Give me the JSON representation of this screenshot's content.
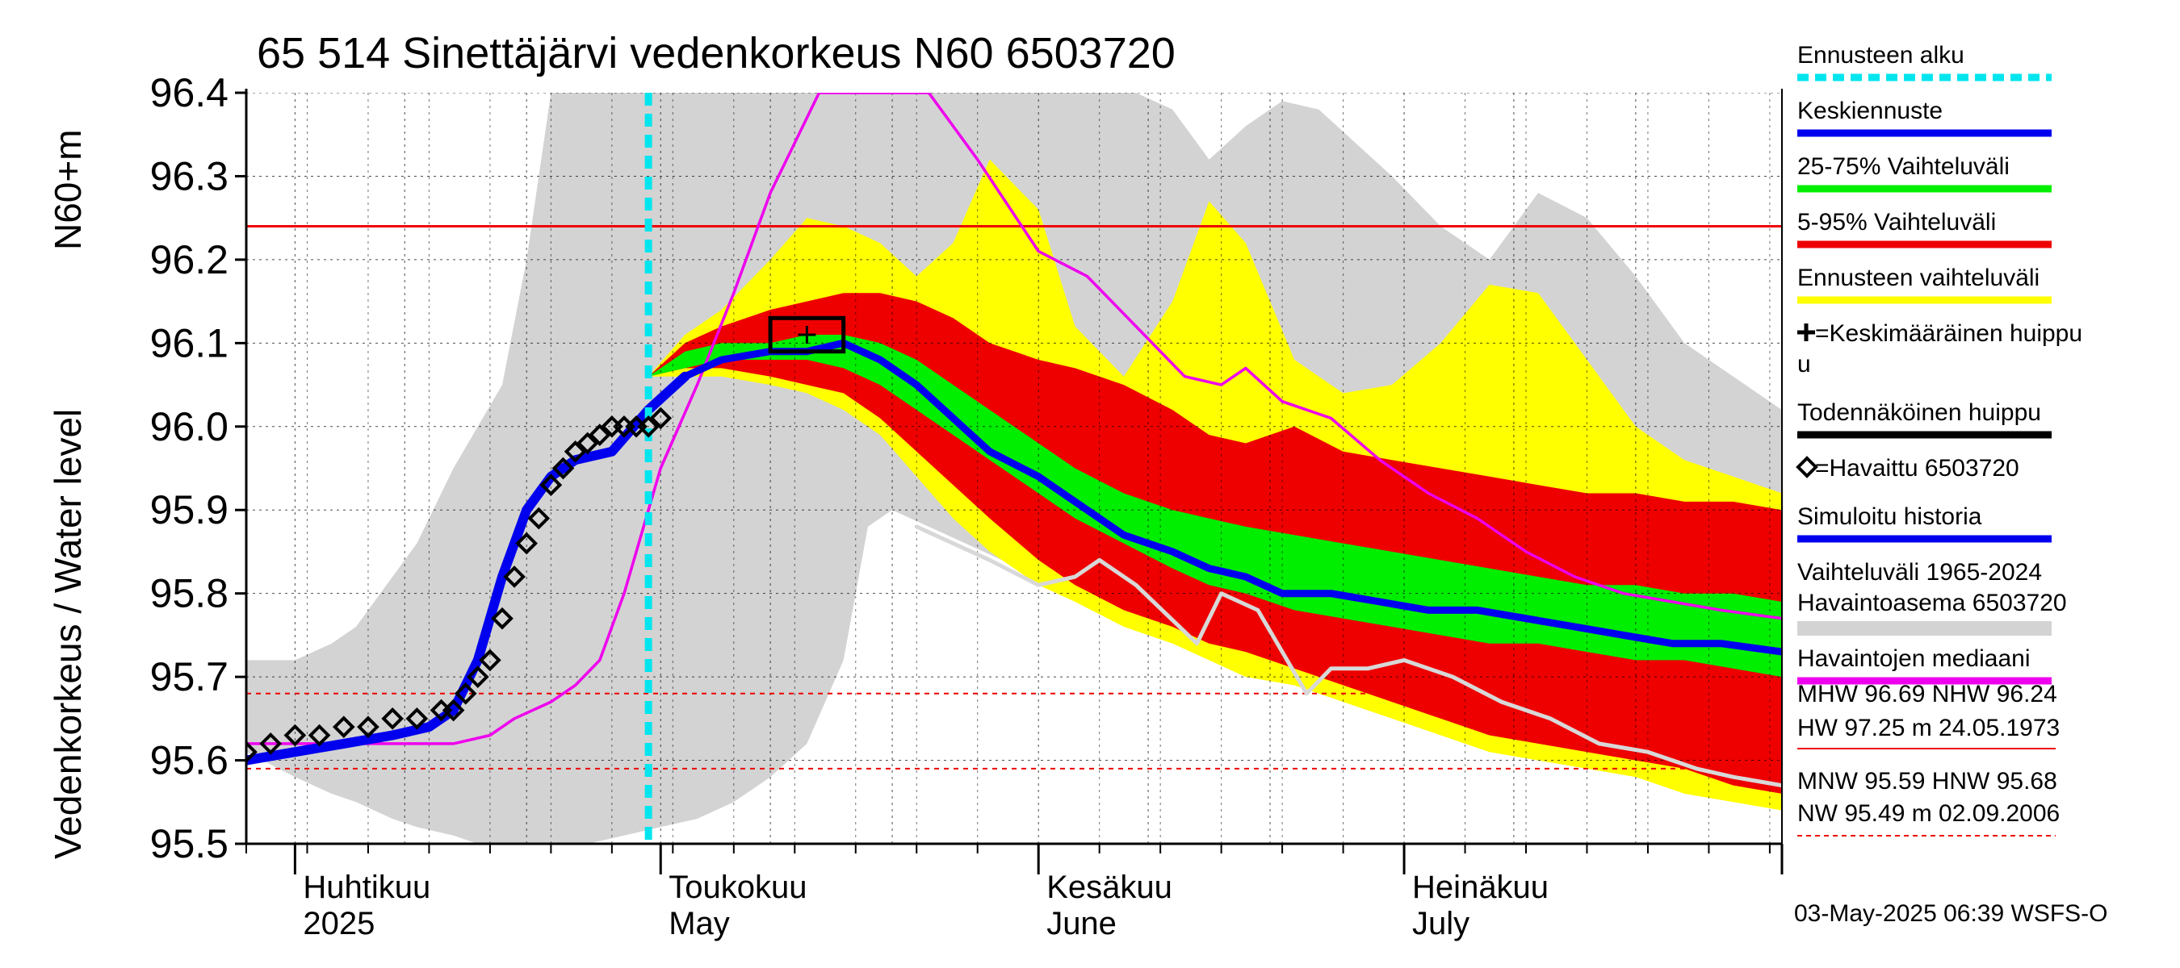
{
  "chart_data": {
    "type": "area",
    "title": "65 514 Sinettäjärvi vedenkorkeus N60 6503720",
    "ylabel": "Vedenkorkeus / Water level",
    "yunit": "N60+m",
    "ylim": [
      95.5,
      96.4
    ],
    "yticks": [
      "95.5",
      "95.6",
      "95.7",
      "95.8",
      "95.9",
      "96.0",
      "96.1",
      "96.2",
      "96.3",
      "96.4"
    ],
    "xlim": [
      "2025-03-28",
      "2025-08-01"
    ],
    "month_labels": [
      {
        "fi": "Huhtikuu",
        "en": "2025",
        "date": "2025-04-01"
      },
      {
        "fi": "Toukokuu",
        "en": "May",
        "date": "2025-05-01"
      },
      {
        "fi": "Kesäkuu",
        "en": "June",
        "date": "2025-06-01"
      },
      {
        "fi": "Heinäkuu",
        "en": "July",
        "date": "2025-07-01"
      }
    ],
    "forecast_start": "2025-04-30",
    "nhw_level": 96.24,
    "mhw_level": 95.68,
    "mnw_level": 95.59,
    "history_band": [
      {
        "date": "2025-03-28",
        "low": 95.61,
        "high": 95.72
      },
      {
        "date": "2025-04-01",
        "low": 95.58,
        "high": 95.72
      },
      {
        "date": "2025-04-04",
        "low": 95.56,
        "high": 95.74
      },
      {
        "date": "2025-04-06",
        "low": 95.55,
        "high": 95.76
      },
      {
        "date": "2025-04-09",
        "low": 95.53,
        "high": 95.82
      },
      {
        "date": "2025-04-11",
        "low": 95.52,
        "high": 95.86
      },
      {
        "date": "2025-04-14",
        "low": 95.51,
        "high": 95.95
      },
      {
        "date": "2025-04-16",
        "low": 95.5,
        "high": 96.0
      },
      {
        "date": "2025-04-18",
        "low": 95.5,
        "high": 96.05
      },
      {
        "date": "2025-04-20",
        "low": 95.5,
        "high": 96.2
      },
      {
        "date": "2025-04-22",
        "low": 95.5,
        "high": 96.4
      },
      {
        "date": "2025-04-25",
        "low": 95.5,
        "high": 96.4
      },
      {
        "date": "2025-04-28",
        "low": 95.51,
        "high": 96.4
      },
      {
        "date": "2025-05-01",
        "low": 95.52,
        "high": 96.4
      },
      {
        "date": "2025-05-04",
        "low": 95.53,
        "high": 96.4
      },
      {
        "date": "2025-05-07",
        "low": 95.55,
        "high": 96.4
      },
      {
        "date": "2025-05-10",
        "low": 95.58,
        "high": 96.4
      },
      {
        "date": "2025-05-13",
        "low": 95.62,
        "high": 96.4
      },
      {
        "date": "2025-05-16",
        "low": 95.72,
        "high": 96.4
      },
      {
        "date": "2025-05-18",
        "low": 95.88,
        "high": 96.4
      },
      {
        "date": "2025-05-20",
        "low": 95.9,
        "high": 96.4
      },
      {
        "date": "2025-05-23",
        "low": 95.88,
        "high": 96.4
      },
      {
        "date": "2025-05-26",
        "low": 95.86,
        "high": 96.4
      },
      {
        "date": "2025-05-29",
        "low": 95.84,
        "high": 96.4
      },
      {
        "date": "2025-06-01",
        "low": 95.82,
        "high": 96.4
      },
      {
        "date": "2025-06-05",
        "low": 95.8,
        "high": 96.4
      },
      {
        "date": "2025-06-09",
        "low": 95.78,
        "high": 96.4
      },
      {
        "date": "2025-06-12",
        "low": 95.77,
        "high": 96.38
      },
      {
        "date": "2025-06-15",
        "low": 95.75,
        "high": 96.32
      },
      {
        "date": "2025-06-18",
        "low": 95.74,
        "high": 96.36
      },
      {
        "date": "2025-06-21",
        "low": 95.72,
        "high": 96.39
      },
      {
        "date": "2025-06-24",
        "low": 95.71,
        "high": 96.38
      },
      {
        "date": "2025-06-27",
        "low": 95.7,
        "high": 96.34
      },
      {
        "date": "2025-06-30",
        "low": 95.68,
        "high": 96.3
      },
      {
        "date": "2025-07-04",
        "low": 95.66,
        "high": 96.24
      },
      {
        "date": "2025-07-08",
        "low": 95.64,
        "high": 96.2
      },
      {
        "date": "2025-07-12",
        "low": 95.62,
        "high": 96.28
      },
      {
        "date": "2025-07-16",
        "low": 95.6,
        "high": 96.25
      },
      {
        "date": "2025-07-20",
        "low": 95.58,
        "high": 96.18
      },
      {
        "date": "2025-07-24",
        "low": 95.57,
        "high": 96.1
      },
      {
        "date": "2025-07-28",
        "low": 95.56,
        "high": 96.06
      },
      {
        "date": "2025-08-01",
        "low": 95.55,
        "high": 96.02
      }
    ],
    "forecast_bands": [
      {
        "date": "2025-04-30",
        "y_low": 96.06,
        "r_low": 96.06,
        "g_low": 96.06,
        "g_high": 96.06,
        "r_high": 96.06,
        "y_high": 96.06
      },
      {
        "date": "2025-05-03",
        "y_low": 96.06,
        "r_low": 96.07,
        "g_low": 96.07,
        "g_high": 96.09,
        "r_high": 96.1,
        "y_high": 96.11
      },
      {
        "date": "2025-05-06",
        "y_low": 96.06,
        "r_low": 96.07,
        "g_low": 96.08,
        "g_high": 96.1,
        "r_high": 96.12,
        "y_high": 96.14
      },
      {
        "date": "2025-05-10",
        "y_low": 96.05,
        "r_low": 96.06,
        "g_low": 96.08,
        "g_high": 96.1,
        "r_high": 96.14,
        "y_high": 96.2
      },
      {
        "date": "2025-05-13",
        "y_low": 96.04,
        "r_low": 96.05,
        "g_low": 96.08,
        "g_high": 96.11,
        "r_high": 96.15,
        "y_high": 96.25
      },
      {
        "date": "2025-05-16",
        "y_low": 96.02,
        "r_low": 96.04,
        "g_low": 96.07,
        "g_high": 96.11,
        "r_high": 96.16,
        "y_high": 96.24
      },
      {
        "date": "2025-05-19",
        "y_low": 95.99,
        "r_low": 96.01,
        "g_low": 96.05,
        "g_high": 96.1,
        "r_high": 96.16,
        "y_high": 96.22
      },
      {
        "date": "2025-05-22",
        "y_low": 95.94,
        "r_low": 95.97,
        "g_low": 96.02,
        "g_high": 96.08,
        "r_high": 96.15,
        "y_high": 96.18
      },
      {
        "date": "2025-05-25",
        "y_low": 95.89,
        "r_low": 95.93,
        "g_low": 95.99,
        "g_high": 96.05,
        "r_high": 96.13,
        "y_high": 96.22
      },
      {
        "date": "2025-05-28",
        "y_low": 95.85,
        "r_low": 95.89,
        "g_low": 95.96,
        "g_high": 96.02,
        "r_high": 96.1,
        "y_high": 96.32
      },
      {
        "date": "2025-06-01",
        "y_low": 95.81,
        "r_low": 95.84,
        "g_low": 95.92,
        "g_high": 95.98,
        "r_high": 96.08,
        "y_high": 96.26
      },
      {
        "date": "2025-06-04",
        "y_low": 95.79,
        "r_low": 95.81,
        "g_low": 95.89,
        "g_high": 95.95,
        "r_high": 96.07,
        "y_high": 96.12
      },
      {
        "date": "2025-06-08",
        "y_low": 95.76,
        "r_low": 95.78,
        "g_low": 95.86,
        "g_high": 95.92,
        "r_high": 96.05,
        "y_high": 96.06
      },
      {
        "date": "2025-06-12",
        "y_low": 95.74,
        "r_low": 95.76,
        "g_low": 95.83,
        "g_high": 95.9,
        "r_high": 96.02,
        "y_high": 96.15
      },
      {
        "date": "2025-06-15",
        "y_low": 95.72,
        "r_low": 95.74,
        "g_low": 95.81,
        "g_high": 95.89,
        "r_high": 95.99,
        "y_high": 96.27
      },
      {
        "date": "2025-06-18",
        "y_low": 95.7,
        "r_low": 95.73,
        "g_low": 95.8,
        "g_high": 95.88,
        "r_high": 95.98,
        "y_high": 96.22
      },
      {
        "date": "2025-06-22",
        "y_low": 95.69,
        "r_low": 95.71,
        "g_low": 95.78,
        "g_high": 95.87,
        "r_high": 96.0,
        "y_high": 96.08
      },
      {
        "date": "2025-06-26",
        "y_low": 95.67,
        "r_low": 95.69,
        "g_low": 95.77,
        "g_high": 95.86,
        "r_high": 95.97,
        "y_high": 96.04
      },
      {
        "date": "2025-06-30",
        "y_low": 95.65,
        "r_low": 95.67,
        "g_low": 95.76,
        "g_high": 95.85,
        "r_high": 95.96,
        "y_high": 96.05
      },
      {
        "date": "2025-07-04",
        "y_low": 95.63,
        "r_low": 95.65,
        "g_low": 95.75,
        "g_high": 95.84,
        "r_high": 95.95,
        "y_high": 96.1
      },
      {
        "date": "2025-07-08",
        "y_low": 95.61,
        "r_low": 95.63,
        "g_low": 95.74,
        "g_high": 95.83,
        "r_high": 95.94,
        "y_high": 96.17
      },
      {
        "date": "2025-07-12",
        "y_low": 95.6,
        "r_low": 95.62,
        "g_low": 95.74,
        "g_high": 95.82,
        "r_high": 95.93,
        "y_high": 96.16
      },
      {
        "date": "2025-07-16",
        "y_low": 95.59,
        "r_low": 95.61,
        "g_low": 95.73,
        "g_high": 95.81,
        "r_high": 95.92,
        "y_high": 96.08
      },
      {
        "date": "2025-07-20",
        "y_low": 95.58,
        "r_low": 95.6,
        "g_low": 95.72,
        "g_high": 95.81,
        "r_high": 95.92,
        "y_high": 96.0
      },
      {
        "date": "2025-07-24",
        "y_low": 95.56,
        "r_low": 95.59,
        "g_low": 95.72,
        "g_high": 95.8,
        "r_high": 95.91,
        "y_high": 95.96
      },
      {
        "date": "2025-07-28",
        "y_low": 95.55,
        "r_low": 95.57,
        "g_low": 95.71,
        "g_high": 95.8,
        "r_high": 95.91,
        "y_high": 95.94
      },
      {
        "date": "2025-08-01",
        "y_low": 95.54,
        "r_low": 95.56,
        "g_low": 95.7,
        "g_high": 95.79,
        "r_high": 95.9,
        "y_high": 95.92
      }
    ],
    "median": [
      {
        "date": "2025-03-28",
        "y": 95.62
      },
      {
        "date": "2025-04-10",
        "y": 95.62
      },
      {
        "date": "2025-04-14",
        "y": 95.62
      },
      {
        "date": "2025-04-17",
        "y": 95.63
      },
      {
        "date": "2025-04-19",
        "y": 95.65
      },
      {
        "date": "2025-04-22",
        "y": 95.67
      },
      {
        "date": "2025-04-24",
        "y": 95.69
      },
      {
        "date": "2025-04-26",
        "y": 95.72
      },
      {
        "date": "2025-04-28",
        "y": 95.8
      },
      {
        "date": "2025-05-01",
        "y": 95.95
      },
      {
        "date": "2025-05-04",
        "y": 96.05
      },
      {
        "date": "2025-05-07",
        "y": 96.16
      },
      {
        "date": "2025-05-10",
        "y": 96.28
      },
      {
        "date": "2025-05-12",
        "y": 96.34
      },
      {
        "date": "2025-05-14",
        "y": 96.4
      },
      {
        "date": "2025-05-23",
        "y": 96.4
      },
      {
        "date": "2025-05-27",
        "y": 96.32
      },
      {
        "date": "2025-06-01",
        "y": 96.21
      },
      {
        "date": "2025-06-05",
        "y": 96.18
      },
      {
        "date": "2025-06-09",
        "y": 96.12
      },
      {
        "date": "2025-06-13",
        "y": 96.06
      },
      {
        "date": "2025-06-16",
        "y": 96.05
      },
      {
        "date": "2025-06-18",
        "y": 96.07
      },
      {
        "date": "2025-06-21",
        "y": 96.03
      },
      {
        "date": "2025-06-25",
        "y": 96.01
      },
      {
        "date": "2025-06-29",
        "y": 95.96
      },
      {
        "date": "2025-07-03",
        "y": 95.92
      },
      {
        "date": "2025-07-07",
        "y": 95.89
      },
      {
        "date": "2025-07-11",
        "y": 95.85
      },
      {
        "date": "2025-07-15",
        "y": 95.82
      },
      {
        "date": "2025-07-19",
        "y": 95.8
      },
      {
        "date": "2025-07-23",
        "y": 95.79
      },
      {
        "date": "2025-07-27",
        "y": 95.78
      },
      {
        "date": "2025-08-01",
        "y": 95.77
      }
    ],
    "median_history": [
      {
        "date": "2025-05-22",
        "y": 95.88
      },
      {
        "date": "2025-05-28",
        "y": 95.84
      },
      {
        "date": "2025-06-01",
        "y": 95.81
      },
      {
        "date": "2025-06-04",
        "y": 95.82
      },
      {
        "date": "2025-06-06",
        "y": 95.84
      },
      {
        "date": "2025-06-09",
        "y": 95.81
      },
      {
        "date": "2025-06-14",
        "y": 95.74
      },
      {
        "date": "2025-06-16",
        "y": 95.8
      },
      {
        "date": "2025-06-19",
        "y": 95.78
      },
      {
        "date": "2025-06-23",
        "y": 95.68
      },
      {
        "date": "2025-06-25",
        "y": 95.71
      },
      {
        "date": "2025-06-28",
        "y": 95.71
      },
      {
        "date": "2025-07-01",
        "y": 95.72
      },
      {
        "date": "2025-07-05",
        "y": 95.7
      },
      {
        "date": "2025-07-09",
        "y": 95.67
      },
      {
        "date": "2025-07-13",
        "y": 95.65
      },
      {
        "date": "2025-07-17",
        "y": 95.62
      },
      {
        "date": "2025-07-21",
        "y": 95.61
      },
      {
        "date": "2025-07-25",
        "y": 95.59
      },
      {
        "date": "2025-07-28",
        "y": 95.58
      },
      {
        "date": "2025-08-01",
        "y": 95.57
      }
    ],
    "simulated": [
      {
        "date": "2025-03-28",
        "y": 95.6
      },
      {
        "date": "2025-04-01",
        "y": 95.61
      },
      {
        "date": "2025-04-05",
        "y": 95.62
      },
      {
        "date": "2025-04-09",
        "y": 95.63
      },
      {
        "date": "2025-04-12",
        "y": 95.64
      },
      {
        "date": "2025-04-14",
        "y": 95.66
      },
      {
        "date": "2025-04-16",
        "y": 95.72
      },
      {
        "date": "2025-04-18",
        "y": 95.82
      },
      {
        "date": "2025-04-20",
        "y": 95.9
      },
      {
        "date": "2025-04-22",
        "y": 95.94
      },
      {
        "date": "2025-04-24",
        "y": 95.96
      },
      {
        "date": "2025-04-27",
        "y": 95.97
      },
      {
        "date": "2025-04-30",
        "y": 96.02
      },
      {
        "date": "2025-05-03",
        "y": 96.06
      }
    ],
    "forecast_mean": [
      {
        "date": "2025-05-03",
        "y": 96.06
      },
      {
        "date": "2025-05-06",
        "y": 96.08
      },
      {
        "date": "2025-05-10",
        "y": 96.09
      },
      {
        "date": "2025-05-13",
        "y": 96.09
      },
      {
        "date": "2025-05-16",
        "y": 96.1
      },
      {
        "date": "2025-05-19",
        "y": 96.08
      },
      {
        "date": "2025-05-22",
        "y": 96.05
      },
      {
        "date": "2025-05-25",
        "y": 96.01
      },
      {
        "date": "2025-05-28",
        "y": 95.97
      },
      {
        "date": "2025-06-01",
        "y": 95.94
      },
      {
        "date": "2025-06-04",
        "y": 95.91
      },
      {
        "date": "2025-06-08",
        "y": 95.87
      },
      {
        "date": "2025-06-12",
        "y": 95.85
      },
      {
        "date": "2025-06-15",
        "y": 95.83
      },
      {
        "date": "2025-06-18",
        "y": 95.82
      },
      {
        "date": "2025-06-21",
        "y": 95.8
      },
      {
        "date": "2025-06-25",
        "y": 95.8
      },
      {
        "date": "2025-06-29",
        "y": 95.79
      },
      {
        "date": "2025-07-03",
        "y": 95.78
      },
      {
        "date": "2025-07-07",
        "y": 95.78
      },
      {
        "date": "2025-07-11",
        "y": 95.77
      },
      {
        "date": "2025-07-15",
        "y": 95.76
      },
      {
        "date": "2025-07-19",
        "y": 95.75
      },
      {
        "date": "2025-07-23",
        "y": 95.74
      },
      {
        "date": "2025-07-27",
        "y": 95.74
      },
      {
        "date": "2025-08-01",
        "y": 95.73
      }
    ],
    "observed": [
      {
        "date": "2025-03-28",
        "y": 95.61
      },
      {
        "date": "2025-03-30",
        "y": 95.62
      },
      {
        "date": "2025-04-01",
        "y": 95.63
      },
      {
        "date": "2025-04-03",
        "y": 95.63
      },
      {
        "date": "2025-04-05",
        "y": 95.64
      },
      {
        "date": "2025-04-07",
        "y": 95.64
      },
      {
        "date": "2025-04-09",
        "y": 95.65
      },
      {
        "date": "2025-04-11",
        "y": 95.65
      },
      {
        "date": "2025-04-13",
        "y": 95.66
      },
      {
        "date": "2025-04-14",
        "y": 95.66
      },
      {
        "date": "2025-04-15",
        "y": 95.68
      },
      {
        "date": "2025-04-16",
        "y": 95.7
      },
      {
        "date": "2025-04-17",
        "y": 95.72
      },
      {
        "date": "2025-04-18",
        "y": 95.77
      },
      {
        "date": "2025-04-19",
        "y": 95.82
      },
      {
        "date": "2025-04-20",
        "y": 95.86
      },
      {
        "date": "2025-04-21",
        "y": 95.89
      },
      {
        "date": "2025-04-22",
        "y": 95.93
      },
      {
        "date": "2025-04-23",
        "y": 95.95
      },
      {
        "date": "2025-04-24",
        "y": 95.97
      },
      {
        "date": "2025-04-25",
        "y": 95.98
      },
      {
        "date": "2025-04-26",
        "y": 95.99
      },
      {
        "date": "2025-04-27",
        "y": 96.0
      },
      {
        "date": "2025-04-28",
        "y": 96.0
      },
      {
        "date": "2025-04-29",
        "y": 96.0
      },
      {
        "date": "2025-04-30",
        "y": 96.0
      },
      {
        "date": "2025-05-01",
        "y": 96.01
      }
    ],
    "probable_peak": {
      "date_from": "2025-05-10",
      "date_to": "2025-05-16",
      "low": 96.09,
      "high": 96.13
    },
    "mean_peak": {
      "date": "2025-05-13",
      "y": 96.11
    }
  },
  "legend": [
    {
      "label": "Ennusteen alku",
      "color": "#00e5ee",
      "style": "dash"
    },
    {
      "label": "Keskiennuste",
      "color": "#0000ee",
      "style": "bar"
    },
    {
      "label": "25-75% Vaihteluväli",
      "color": "#00ee00",
      "style": "bar"
    },
    {
      "label": "5-95% Vaihteluväli",
      "color": "#ee0000",
      "style": "bar"
    },
    {
      "label": "Ennusteen vaihteluväli",
      "color": "#ffff00",
      "style": "bar"
    },
    {
      "label": "=Keskimääräinen huippu",
      "color": "#000000",
      "style": "plus",
      "wrap": "u"
    },
    {
      "label": "Todennäköinen huippu",
      "color": "#000000",
      "style": "bar"
    },
    {
      "label": "=Havaittu 6503720",
      "color": "#000000",
      "style": "diamond"
    },
    {
      "label": "Simuloitu historia",
      "color": "#0000ee",
      "style": "bar"
    },
    {
      "label": "Vaihteluväli 1965-2024",
      "label2": " Havaintoasema 6503720",
      "color": "#d3d3d3",
      "style": "thick"
    },
    {
      "label": "Havaintojen mediaani",
      "color": "#ee00ee",
      "style": "bar"
    }
  ],
  "stats": {
    "line1": "MHW  96.69 NHW  96.24",
    "line2": "HW  97.25 m 24.05.1973",
    "line3": "MNW  95.59 HNW  95.68",
    "line4": "NW  95.49 m 02.09.2006"
  },
  "colors": {
    "history": "#d3d3d3",
    "yellow": "#ffff00",
    "red": "#ee0000",
    "green": "#00ee00",
    "blue": "#0000ee",
    "magenta": "#ee00ee",
    "cyan": "#00e5ee",
    "median_history": "#d8d8d8"
  },
  "footer": "03-May-2025 06:39 WSFS-O"
}
